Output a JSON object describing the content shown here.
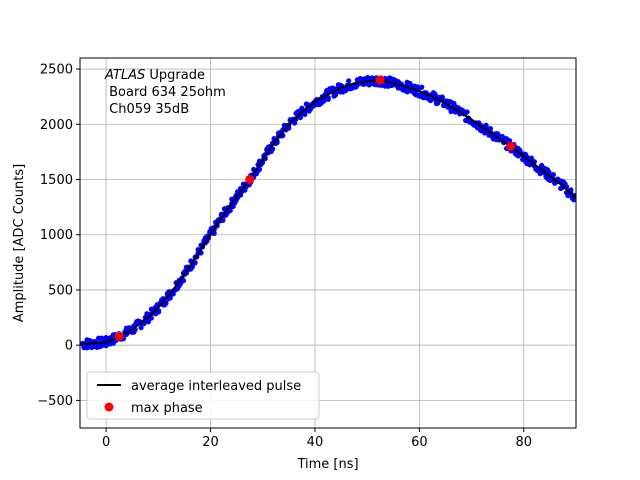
{
  "chart_data": {
    "type": "scatter",
    "xlabel": "Time [ns]",
    "ylabel": "Amplitude [ADC Counts]",
    "xlim": [
      -5,
      90
    ],
    "ylim": [
      -750,
      2600
    ],
    "xticks": [
      0,
      20,
      40,
      60,
      80
    ],
    "yticks": [
      -500,
      0,
      500,
      1000,
      1500,
      2000,
      2500
    ],
    "xtick_labels": [
      "0",
      "20",
      "40",
      "60",
      "80"
    ],
    "ytick_labels": [
      "−500",
      "0",
      "500",
      "1000",
      "1500",
      "2000",
      "2500"
    ],
    "grid": true,
    "annotation": {
      "line1_italic": "ATLAS",
      "line1_rest": " Upgrade",
      "line2": " Board 634 25ohm",
      "line3": " Ch059 35dB"
    },
    "legend": {
      "placement": "lower-left",
      "entries": [
        {
          "label": "average interleaved pulse",
          "color": "#000000",
          "marker": "line"
        },
        {
          "label": "max phase",
          "color": "#ff0000",
          "marker": "circle"
        }
      ]
    },
    "series": [
      {
        "name": "average interleaved pulse",
        "kind": "line",
        "color": "#000000",
        "x": [
          -5,
          0,
          2.5,
          5,
          7.5,
          10,
          12.5,
          15,
          17.5,
          20,
          22.5,
          25,
          27.5,
          30,
          32.5,
          35,
          37.5,
          40,
          42.5,
          45,
          47.5,
          50,
          52.5,
          55,
          57.5,
          60,
          62.5,
          65,
          67.5,
          70,
          72.5,
          75,
          77.5,
          80,
          82.5,
          85,
          87.5,
          90
        ],
        "y": [
          10,
          25,
          80,
          140,
          230,
          340,
          480,
          640,
          820,
          1000,
          1180,
          1340,
          1500,
          1680,
          1850,
          2000,
          2110,
          2200,
          2270,
          2330,
          2370,
          2390,
          2400,
          2370,
          2340,
          2300,
          2250,
          2190,
          2120,
          2040,
          1960,
          1880,
          1800,
          1710,
          1620,
          1530,
          1440,
          1330
        ]
      },
      {
        "name": "max phase",
        "kind": "points",
        "color": "#ff0000",
        "x": [
          2.5,
          27.5,
          52.5,
          77.5
        ],
        "y": [
          80,
          1500,
          2400,
          1800
        ]
      }
    ],
    "scatter_color": "#0000ff"
  }
}
